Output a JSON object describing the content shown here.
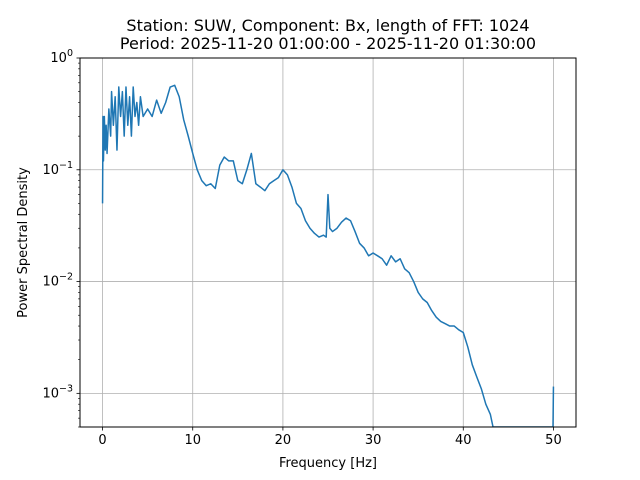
{
  "chart_data": {
    "type": "line",
    "title": [
      "Station: SUW, Component: Bx, length of FFT: 1024",
      "Period: 2025-11-20 01:00:00 - 2025-11-20 01:30:00"
    ],
    "xlabel": "Frequency [Hz]",
    "ylabel": "Power Spectral Density",
    "xlim": [
      -2.5,
      52.5
    ],
    "ylim": [
      0.0005,
      1
    ],
    "yscale": "log",
    "grid": true,
    "line_color": "#1f77b4",
    "x_ticks": [
      0,
      10,
      20,
      30,
      40,
      50
    ],
    "x_tick_labels": [
      "0",
      "10",
      "20",
      "30",
      "40",
      "50"
    ],
    "y_ticks": [
      0.001,
      0.01,
      0.1,
      1
    ],
    "y_tick_labels": [
      {
        "base": "10",
        "exp": "−3"
      },
      {
        "base": "10",
        "exp": "−2"
      },
      {
        "base": "10",
        "exp": "−1"
      },
      {
        "base": "10",
        "exp": "0"
      }
    ],
    "series": [
      {
        "x": [
          0,
          0.05,
          0.1,
          0.2,
          0.3,
          0.4,
          0.5,
          0.7,
          0.9,
          1.0,
          1.2,
          1.4,
          1.6,
          1.8,
          2.0,
          2.2,
          2.4,
          2.6,
          2.8,
          3.0,
          3.2,
          3.4,
          3.6,
          3.8,
          4.0,
          4.2,
          4.5,
          5.0,
          5.5,
          6.0,
          6.5,
          7.0,
          7.5,
          8.0,
          8.5,
          9.0,
          9.5,
          10.0,
          10.5,
          11.0,
          11.5,
          12.0,
          12.5,
          13.0,
          13.5,
          14.0,
          14.5,
          15.0,
          15.5,
          16.0,
          16.5,
          17.0,
          17.5,
          18.0,
          18.5,
          19.0,
          19.5,
          20.0,
          20.5,
          21.0,
          21.5,
          22.0,
          22.5,
          23.0,
          23.5,
          24.0,
          24.5,
          24.8,
          25.0,
          25.2,
          25.5,
          26.0,
          26.5,
          27.0,
          27.5,
          28.0,
          28.5,
          29.0,
          29.5,
          30.0,
          30.5,
          31.0,
          31.5,
          32.0,
          32.5,
          33.0,
          33.5,
          34.0,
          34.5,
          35.0,
          35.5,
          36.0,
          36.5,
          37.0,
          37.5,
          38.0,
          38.5,
          39.0,
          39.5,
          40.0,
          40.5,
          41.0,
          41.5,
          42.0,
          42.5,
          43.0,
          43.3,
          49.95,
          50.0
        ],
        "y": [
          0.05,
          0.3,
          0.12,
          0.3,
          0.15,
          0.25,
          0.14,
          0.35,
          0.2,
          0.5,
          0.25,
          0.45,
          0.15,
          0.55,
          0.3,
          0.5,
          0.2,
          0.55,
          0.25,
          0.45,
          0.2,
          0.55,
          0.3,
          0.4,
          0.25,
          0.45,
          0.3,
          0.35,
          0.3,
          0.42,
          0.32,
          0.4,
          0.55,
          0.57,
          0.45,
          0.28,
          0.2,
          0.14,
          0.1,
          0.08,
          0.072,
          0.075,
          0.068,
          0.11,
          0.13,
          0.12,
          0.12,
          0.08,
          0.075,
          0.1,
          0.14,
          0.075,
          0.07,
          0.065,
          0.075,
          0.08,
          0.085,
          0.1,
          0.09,
          0.07,
          0.05,
          0.045,
          0.035,
          0.03,
          0.027,
          0.025,
          0.026,
          0.025,
          0.06,
          0.03,
          0.028,
          0.03,
          0.034,
          0.037,
          0.035,
          0.028,
          0.022,
          0.02,
          0.017,
          0.018,
          0.017,
          0.016,
          0.014,
          0.017,
          0.015,
          0.016,
          0.013,
          0.012,
          0.01,
          0.008,
          0.007,
          0.0065,
          0.0055,
          0.0048,
          0.0044,
          0.0042,
          0.004,
          0.004,
          0.0037,
          0.0035,
          0.0026,
          0.0018,
          0.0014,
          0.0011,
          0.0008,
          0.00065,
          0.0005,
          0.0005,
          0.00115
        ]
      }
    ]
  }
}
